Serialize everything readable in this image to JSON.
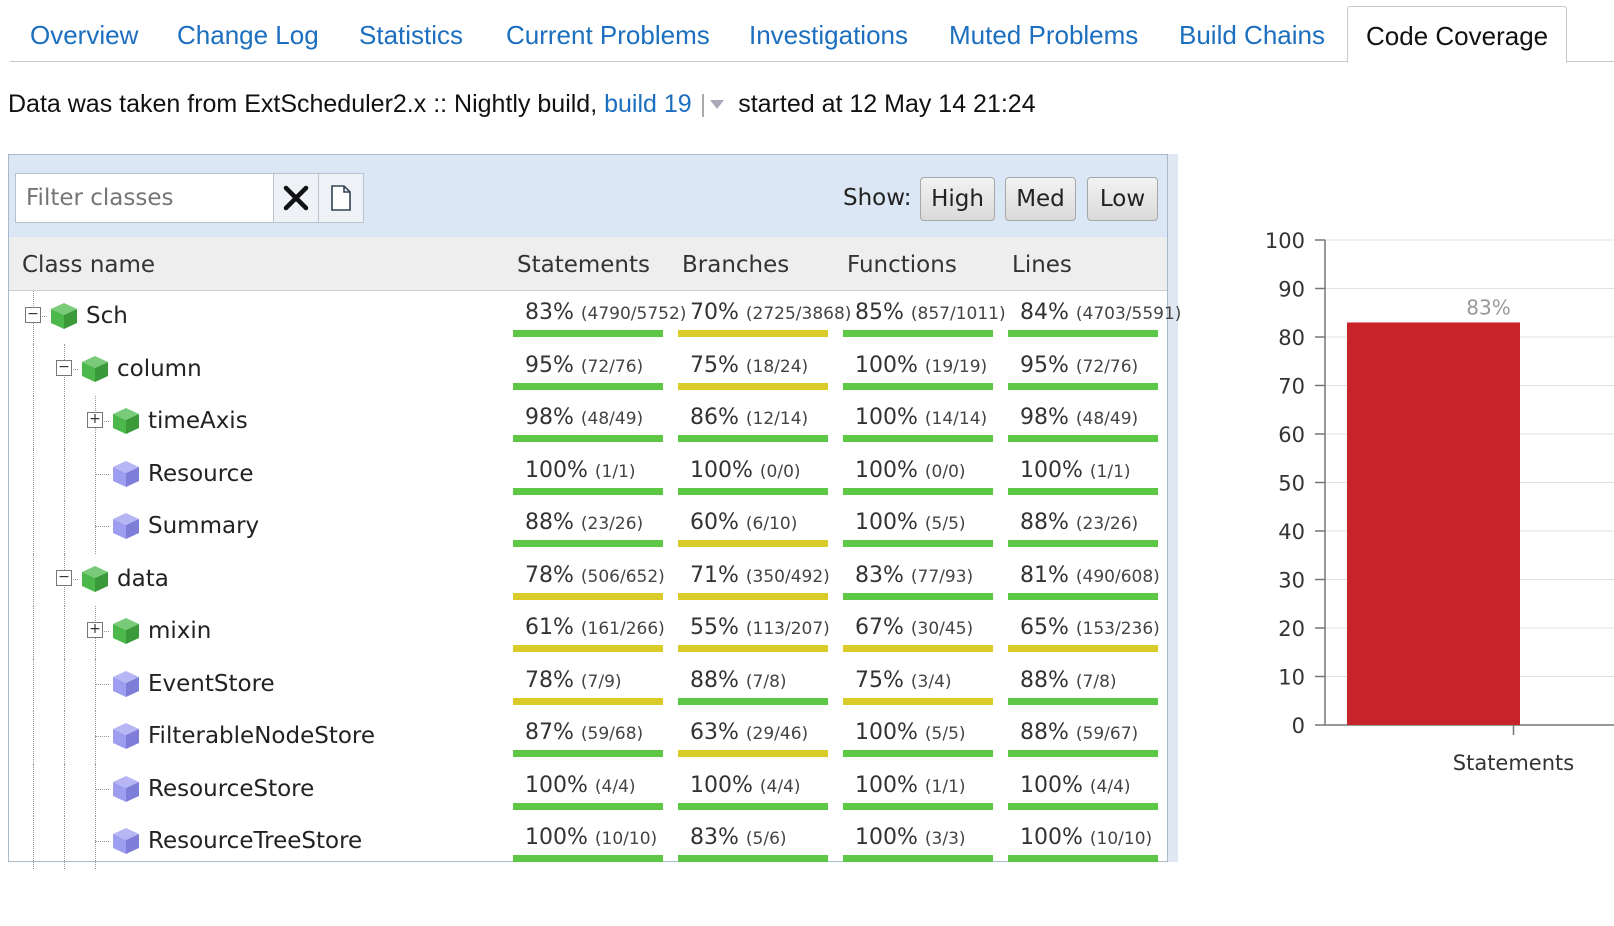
{
  "tabs": [
    {
      "label": "Overview",
      "active": false
    },
    {
      "label": "Change Log",
      "active": false
    },
    {
      "label": "Statistics",
      "active": false
    },
    {
      "label": "Current Problems",
      "active": false
    },
    {
      "label": "Investigations",
      "active": false
    },
    {
      "label": "Muted Problems",
      "active": false
    },
    {
      "label": "Build Chains",
      "active": false
    },
    {
      "label": "Code Coverage",
      "active": true
    }
  ],
  "info": {
    "prefix": "Data was taken from ExtScheduler2.x :: Nightly build,",
    "build_link": "build 19",
    "started": "started at 12 May 14 21:24"
  },
  "toolbar": {
    "filter_placeholder": "Filter classes",
    "clear_icon": "close-icon",
    "export_icon": "document-icon",
    "show_label": "Show:",
    "high_label": "High",
    "med_label": "Med",
    "low_label": "Low"
  },
  "colors": {
    "green": "#5cc845",
    "yellow": "#d9cc2a",
    "package_cube": "#4cb84c",
    "class_cube": "#9e9ef0",
    "accent_link": "#1c6fbf",
    "chart_bar": "#c8232a"
  },
  "columns": [
    "Class name",
    "Statements",
    "Branches",
    "Functions",
    "Lines"
  ],
  "rows": [
    {
      "name": "Sch",
      "level": 0,
      "kind": "package",
      "toggle": "minus",
      "cells": [
        {
          "pct": "83%",
          "detail": "(4790/5752)",
          "color": "green"
        },
        {
          "pct": "70%",
          "detail": "(2725/3868)",
          "color": "yellow"
        },
        {
          "pct": "85%",
          "detail": "(857/1011)",
          "color": "green"
        },
        {
          "pct": "84%",
          "detail": "(4703/5591)",
          "color": "green"
        }
      ]
    },
    {
      "name": "column",
      "level": 1,
      "kind": "package",
      "toggle": "minus",
      "cells": [
        {
          "pct": "95%",
          "detail": "(72/76)",
          "color": "green"
        },
        {
          "pct": "75%",
          "detail": "(18/24)",
          "color": "yellow"
        },
        {
          "pct": "100%",
          "detail": "(19/19)",
          "color": "green"
        },
        {
          "pct": "95%",
          "detail": "(72/76)",
          "color": "green"
        }
      ]
    },
    {
      "name": "timeAxis",
      "level": 2,
      "kind": "package",
      "toggle": "plus",
      "cells": [
        {
          "pct": "98%",
          "detail": "(48/49)",
          "color": "green"
        },
        {
          "pct": "86%",
          "detail": "(12/14)",
          "color": "green"
        },
        {
          "pct": "100%",
          "detail": "(14/14)",
          "color": "green"
        },
        {
          "pct": "98%",
          "detail": "(48/49)",
          "color": "green"
        }
      ]
    },
    {
      "name": "Resource",
      "level": 2,
      "kind": "class",
      "toggle": "none",
      "cells": [
        {
          "pct": "100%",
          "detail": "(1/1)",
          "color": "green"
        },
        {
          "pct": "100%",
          "detail": "(0/0)",
          "color": "green"
        },
        {
          "pct": "100%",
          "detail": "(0/0)",
          "color": "green"
        },
        {
          "pct": "100%",
          "detail": "(1/1)",
          "color": "green"
        }
      ]
    },
    {
      "name": "Summary",
      "level": 2,
      "kind": "class",
      "toggle": "none",
      "cells": [
        {
          "pct": "88%",
          "detail": "(23/26)",
          "color": "green"
        },
        {
          "pct": "60%",
          "detail": "(6/10)",
          "color": "yellow"
        },
        {
          "pct": "100%",
          "detail": "(5/5)",
          "color": "green"
        },
        {
          "pct": "88%",
          "detail": "(23/26)",
          "color": "green"
        }
      ]
    },
    {
      "name": "data",
      "level": 1,
      "kind": "package",
      "toggle": "minus",
      "cells": [
        {
          "pct": "78%",
          "detail": "(506/652)",
          "color": "yellow"
        },
        {
          "pct": "71%",
          "detail": "(350/492)",
          "color": "yellow"
        },
        {
          "pct": "83%",
          "detail": "(77/93)",
          "color": "green"
        },
        {
          "pct": "81%",
          "detail": "(490/608)",
          "color": "green"
        }
      ]
    },
    {
      "name": "mixin",
      "level": 2,
      "kind": "package",
      "toggle": "plus",
      "cells": [
        {
          "pct": "61%",
          "detail": "(161/266)",
          "color": "yellow"
        },
        {
          "pct": "55%",
          "detail": "(113/207)",
          "color": "yellow"
        },
        {
          "pct": "67%",
          "detail": "(30/45)",
          "color": "yellow"
        },
        {
          "pct": "65%",
          "detail": "(153/236)",
          "color": "yellow"
        }
      ]
    },
    {
      "name": "EventStore",
      "level": 2,
      "kind": "class",
      "toggle": "none",
      "cells": [
        {
          "pct": "78%",
          "detail": "(7/9)",
          "color": "yellow"
        },
        {
          "pct": "88%",
          "detail": "(7/8)",
          "color": "green"
        },
        {
          "pct": "75%",
          "detail": "(3/4)",
          "color": "yellow"
        },
        {
          "pct": "88%",
          "detail": "(7/8)",
          "color": "green"
        }
      ]
    },
    {
      "name": "FilterableNodeStore",
      "level": 2,
      "kind": "class",
      "toggle": "none",
      "cells": [
        {
          "pct": "87%",
          "detail": "(59/68)",
          "color": "green"
        },
        {
          "pct": "63%",
          "detail": "(29/46)",
          "color": "yellow"
        },
        {
          "pct": "100%",
          "detail": "(5/5)",
          "color": "green"
        },
        {
          "pct": "88%",
          "detail": "(59/67)",
          "color": "green"
        }
      ]
    },
    {
      "name": "ResourceStore",
      "level": 2,
      "kind": "class",
      "toggle": "none",
      "cells": [
        {
          "pct": "100%",
          "detail": "(4/4)",
          "color": "green"
        },
        {
          "pct": "100%",
          "detail": "(4/4)",
          "color": "green"
        },
        {
          "pct": "100%",
          "detail": "(1/1)",
          "color": "green"
        },
        {
          "pct": "100%",
          "detail": "(4/4)",
          "color": "green"
        }
      ]
    },
    {
      "name": "ResourceTreeStore",
      "level": 2,
      "kind": "class",
      "toggle": "none",
      "cells": [
        {
          "pct": "100%",
          "detail": "(10/10)",
          "color": "green"
        },
        {
          "pct": "83%",
          "detail": "(5/6)",
          "color": "green"
        },
        {
          "pct": "100%",
          "detail": "(3/3)",
          "color": "green"
        },
        {
          "pct": "100%",
          "detail": "(10/10)",
          "color": "green"
        }
      ]
    }
  ],
  "chart_data": {
    "type": "bar",
    "categories": [
      "Statements"
    ],
    "values": [
      83
    ],
    "data_labels": [
      "83%"
    ],
    "ylim": [
      0,
      100
    ],
    "yticks": [
      0,
      10,
      20,
      30,
      40,
      50,
      60,
      70,
      80,
      90,
      100
    ],
    "grid": true
  }
}
